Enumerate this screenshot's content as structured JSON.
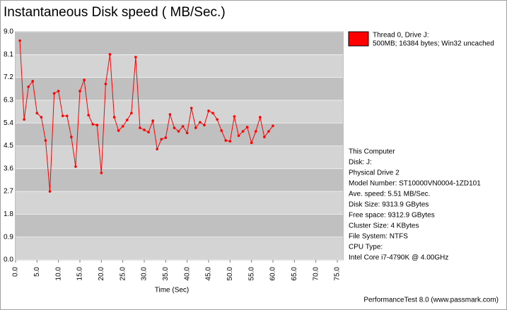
{
  "chart_data": {
    "type": "line",
    "title": "Instantaneous Disk speed ( MB/Sec.)",
    "x_label": "Time (Sec)",
    "xlim": [
      0,
      75
    ],
    "xticks": [
      {
        "value": 0,
        "label": "0.0"
      },
      {
        "value": 5,
        "label": "5.0"
      },
      {
        "value": 10,
        "label": "10.0"
      },
      {
        "value": 15,
        "label": "15.0"
      },
      {
        "value": 20,
        "label": "20.0"
      },
      {
        "value": 25,
        "label": "25.0"
      },
      {
        "value": 30,
        "label": "30.0"
      },
      {
        "value": 35,
        "label": "35.0"
      },
      {
        "value": 40,
        "label": "40.0"
      },
      {
        "value": 45,
        "label": "45.0"
      },
      {
        "value": 50,
        "label": "50.0"
      },
      {
        "value": 55,
        "label": "55.0"
      },
      {
        "value": 60,
        "label": "60.0"
      },
      {
        "value": 65,
        "label": "65.0"
      },
      {
        "value": 70,
        "label": "70.0"
      },
      {
        "value": 75,
        "label": "75.0"
      }
    ],
    "ylim": [
      0,
      9
    ],
    "yticks": [
      {
        "value": 0,
        "label": "0.0"
      },
      0.9,
      1.8,
      2.7,
      3.6,
      4.5,
      5.4,
      6.3,
      7.2,
      8.1,
      {
        "value": 9,
        "label": "9.0"
      }
    ],
    "grid": true,
    "x": [
      1,
      2,
      3,
      4,
      5,
      6,
      7,
      8,
      9,
      10,
      11,
      12,
      13,
      14,
      15,
      16,
      17,
      18,
      19,
      20,
      21,
      22,
      23,
      24,
      25,
      26,
      27,
      28,
      29,
      30,
      31,
      32,
      33,
      34,
      35,
      36,
      37,
      38,
      39,
      40,
      41,
      42,
      43,
      44,
      45,
      46,
      47,
      48,
      49,
      50,
      51,
      52,
      53,
      54,
      55,
      56,
      57,
      58,
      59,
      60
    ],
    "series": [
      {
        "name": "Thread 0, Drive J:",
        "description": "500MB; 16384 bytes; Win32 uncached",
        "color": "#ff0000",
        "values": [
          8.65,
          5.54,
          6.83,
          7.05,
          5.79,
          5.63,
          4.71,
          2.7,
          6.57,
          6.66,
          5.68,
          5.68,
          4.85,
          3.68,
          6.66,
          7.1,
          5.71,
          5.35,
          5.32,
          3.43,
          6.94,
          8.11,
          5.63,
          5.1,
          5.27,
          5.52,
          5.79,
          8.0,
          5.21,
          5.13,
          5.04,
          5.49,
          4.37,
          4.76,
          4.82,
          5.74,
          5.21,
          5.07,
          5.27,
          5.01,
          5.99,
          5.21,
          5.43,
          5.32,
          5.88,
          5.79,
          5.54,
          5.1,
          4.71,
          4.68,
          5.66,
          4.9,
          5.07,
          5.24,
          4.62,
          5.07,
          5.63,
          4.85,
          5.07,
          5.29
        ]
      }
    ]
  },
  "info": [
    "This Computer",
    "Disk: J:",
    "Physical Drive 2",
    "Model Number: ST10000VN0004-1ZD101",
    "Ave. speed: 5.51 MB/Sec.",
    "Disk Size: 9313.9 GBytes",
    "Free space: 9312.9 GBytes",
    "Cluster Size: 4 KBytes",
    "File System: NTFS",
    "CPU Type:",
    "Intel Core i7-4790K @ 4.00GHz"
  ],
  "footer": "PerformanceTest 8.0 (www.passmark.com)"
}
